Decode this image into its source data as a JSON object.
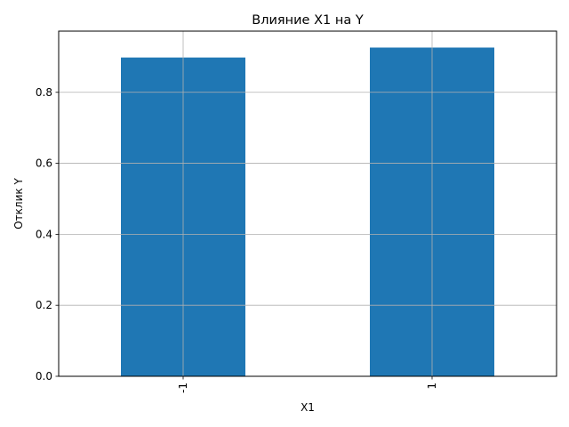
{
  "chart_data": {
    "type": "bar",
    "title": "Влияние X1 на Y",
    "xlabel": "X1",
    "ylabel": "Отклик Y",
    "categories": [
      "-1",
      "1"
    ],
    "values": [
      0.898,
      0.926
    ],
    "ylim": [
      0,
      0.9723
    ],
    "yticks": [
      0.0,
      0.2,
      0.4,
      0.6,
      0.8
    ],
    "ytick_labels": [
      "0.0",
      "0.2",
      "0.4",
      "0.6",
      "0.8"
    ],
    "grid": true,
    "bar_color": "#1f77b4",
    "grid_color": "#b0b0b0",
    "xtick_rotation": "vertical"
  }
}
